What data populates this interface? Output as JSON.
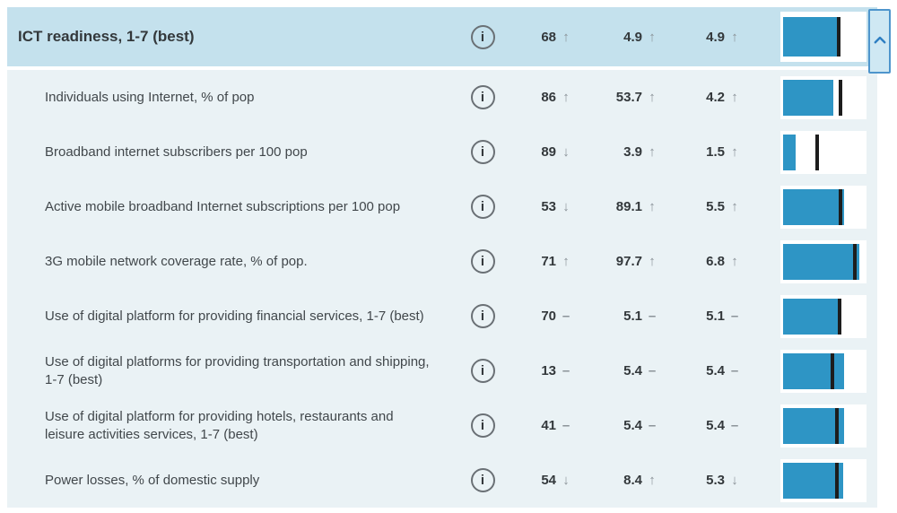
{
  "trend_symbols": {
    "up": "↑",
    "down": "↓",
    "flat": "–"
  },
  "info_glyph": "i",
  "colors": {
    "white": "#ffffff",
    "header_bg": "#c4e1ed",
    "body_bg": "#eaf2f5",
    "bar_blue": "#2e95c5",
    "marker_black": "#1d1d1d",
    "text_dark": "#33383b",
    "label_gray": "#41474b",
    "arrow_gray": "#8a9298",
    "icon_gray": "#6a7075",
    "button_bg": "#cfe8f3",
    "button_border": "#4e95cc",
    "chevron_blue": "#2e7fc2"
  },
  "chart_data": {
    "type": "table",
    "title": "ICT readiness, 1-7 (best)",
    "header": {
      "label": "ICT readiness, 1-7 (best)",
      "rank": "68",
      "rank_trend": "up",
      "value": "4.9",
      "value_trend": "up",
      "score": "4.9",
      "score_trend": "up",
      "bar_pct": 71,
      "marker_pct": 70
    },
    "rows": [
      {
        "label": "Individuals using Internet, % of pop",
        "rank": "86",
        "rank_trend": "up",
        "value": "53.7",
        "value_trend": "up",
        "score": "4.2",
        "score_trend": "up",
        "bar_pct": 62,
        "marker_pct": 72
      },
      {
        "label": "Broadband internet subscribers per 100 pop",
        "rank": "89",
        "rank_trend": "down",
        "value": "3.9",
        "value_trend": "up",
        "score": "1.5",
        "score_trend": "up",
        "bar_pct": 16,
        "marker_pct": 42
      },
      {
        "label": "Active mobile broadband Internet subscriptions per 100 pop",
        "rank": "53",
        "rank_trend": "down",
        "value": "89.1",
        "value_trend": "up",
        "score": "5.5",
        "score_trend": "up",
        "bar_pct": 75,
        "marker_pct": 72
      },
      {
        "label": "3G mobile network coverage rate, % of pop.",
        "rank": "71",
        "rank_trend": "up",
        "value": "97.7",
        "value_trend": "up",
        "score": "6.8",
        "score_trend": "up",
        "bar_pct": 94,
        "marker_pct": 91
      },
      {
        "label": "Use of digital platform for providing financial services, 1-7 (best)",
        "rank": "70",
        "rank_trend": "flat",
        "value": "5.1",
        "value_trend": "flat",
        "score": "5.1",
        "score_trend": "flat",
        "bar_pct": 72,
        "marker_pct": 71
      },
      {
        "label": "Use of digital platforms for providing transportation and shipping, 1-7 (best)",
        "rank": "13",
        "rank_trend": "flat",
        "value": "5.4",
        "value_trend": "flat",
        "score": "5.4",
        "score_trend": "flat",
        "bar_pct": 76,
        "marker_pct": 62
      },
      {
        "label": "Use of digital platform for providing hotels, restaurants and leisure activities services, 1-7 (best)",
        "rank": "41",
        "rank_trend": "flat",
        "value": "5.4",
        "value_trend": "flat",
        "score": "5.4",
        "score_trend": "flat",
        "bar_pct": 75,
        "marker_pct": 68
      },
      {
        "label": "Power losses, % of domestic supply",
        "rank": "54",
        "rank_trend": "down",
        "value": "8.4",
        "value_trend": "up",
        "score": "5.3",
        "score_trend": "down",
        "bar_pct": 74,
        "marker_pct": 68
      }
    ]
  }
}
